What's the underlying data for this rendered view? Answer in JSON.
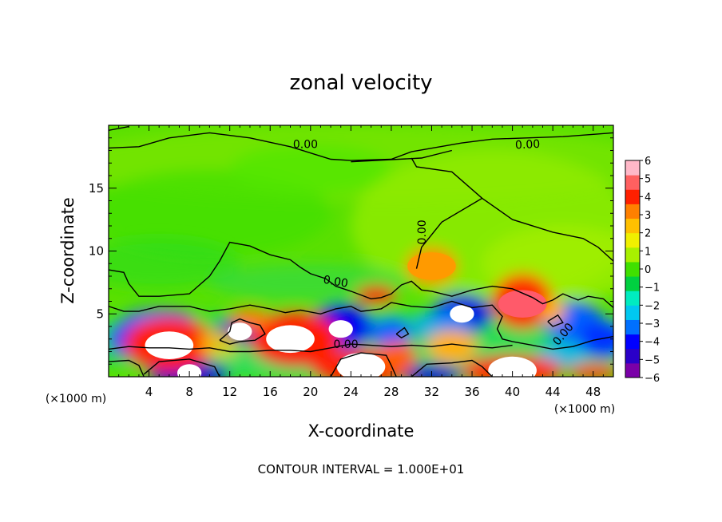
{
  "chart_data": {
    "type": "heatmap",
    "title": "zonal velocity",
    "xlabel": "X-coordinate",
    "ylabel": "Z-coordinate",
    "x_unit": "(×1000 m)",
    "y_unit": "(×1000 m)",
    "x_ticks": [
      "4",
      "8",
      "12",
      "16",
      "20",
      "24",
      "28",
      "32",
      "36",
      "40",
      "44",
      "48"
    ],
    "y_ticks": [
      "5",
      "10",
      "15"
    ],
    "xlim": [
      0,
      50
    ],
    "ylim": [
      0,
      20
    ],
    "contour_interval_text": "CONTOUR INTERVAL = 1.000E+01",
    "contour_level_labels": [
      "0.00",
      "0.00",
      "0.00",
      "0.00",
      "0.00",
      "0.00"
    ],
    "colorbar": {
      "ticks": [
        "6",
        "5",
        "4",
        "3",
        "2",
        "1",
        "0",
        "−1",
        "−2",
        "−3",
        "−4",
        "−5",
        "−6"
      ],
      "range": [
        -6,
        6
      ],
      "colors": [
        "#7a00a8",
        "#2a00c8",
        "#0000ff",
        "#0070ff",
        "#00c8f0",
        "#00ecc0",
        "#00d040",
        "#40e000",
        "#a8f000",
        "#f0f000",
        "#ffc000",
        "#ff8000",
        "#ff2000",
        "#ff6060",
        "#ffb8c8"
      ]
    },
    "features": [
      {
        "kind": "positive-core",
        "x": 6,
        "z": 2.5,
        "value": 6
      },
      {
        "kind": "positive-core",
        "x": 18,
        "z": 3,
        "value": 6
      },
      {
        "kind": "positive-core",
        "x": 25,
        "z": 0.8,
        "value": 6
      },
      {
        "kind": "positive-core",
        "x": 40,
        "z": 0.5,
        "value": 6
      },
      {
        "kind": "positive-core",
        "x": 41,
        "z": 5.8,
        "value": 5
      },
      {
        "kind": "positive-core",
        "x": 32,
        "z": 8.8,
        "value": 3
      },
      {
        "kind": "negative-core",
        "x": 23,
        "z": 3.8,
        "value": -6
      },
      {
        "kind": "negative-core",
        "x": 35,
        "z": 5,
        "value": -6
      },
      {
        "kind": "negative-core",
        "x": 13,
        "z": 3.6,
        "value": -6
      },
      {
        "kind": "negative-core",
        "x": 8,
        "z": 0.3,
        "value": -6
      }
    ]
  }
}
